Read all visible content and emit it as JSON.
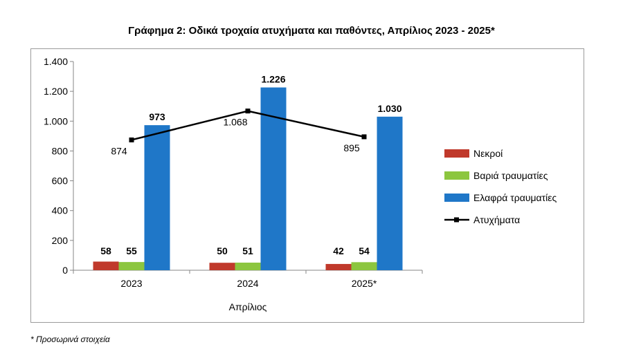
{
  "chart_data": {
    "type": "bar",
    "title": "Γράφημα 2: Οδικά τροχαία ατυχήματα και παθόντες, Απρίλιος 2023 - 2025*",
    "xlabel": "Απρίλιος",
    "ylabel": "",
    "ylim": [
      0,
      1400
    ],
    "yticks": [
      0,
      200,
      400,
      600,
      800,
      1000,
      1200,
      1400
    ],
    "ytick_labels": [
      "0",
      "200",
      "400",
      "600",
      "800",
      "1.000",
      "1.200",
      "1.400"
    ],
    "categories": [
      "2023",
      "2024",
      "2025*"
    ],
    "series": [
      {
        "name": "Νεκροί",
        "kind": "bar",
        "color": "#c0392b",
        "values": [
          58,
          50,
          42
        ],
        "labels": [
          "58",
          "50",
          "42"
        ]
      },
      {
        "name": "Βαριά τραυματίες",
        "kind": "bar",
        "color": "#8cc63f",
        "values": [
          55,
          51,
          54
        ],
        "labels": [
          "55",
          "51",
          "54"
        ]
      },
      {
        "name": "Ελαφρά τραυματίες",
        "kind": "bar",
        "color": "#1f77c8",
        "values": [
          973,
          1226,
          1030
        ],
        "labels": [
          "973",
          "1.226",
          "1.030"
        ]
      },
      {
        "name": "Ατυχήματα",
        "kind": "line",
        "color": "#000000",
        "values": [
          874,
          1068,
          895
        ],
        "labels": [
          "874",
          "1.068",
          "895"
        ]
      }
    ],
    "legend_position": "right",
    "grid": false
  },
  "footnote": "* Προσωρινά στοιχεία"
}
